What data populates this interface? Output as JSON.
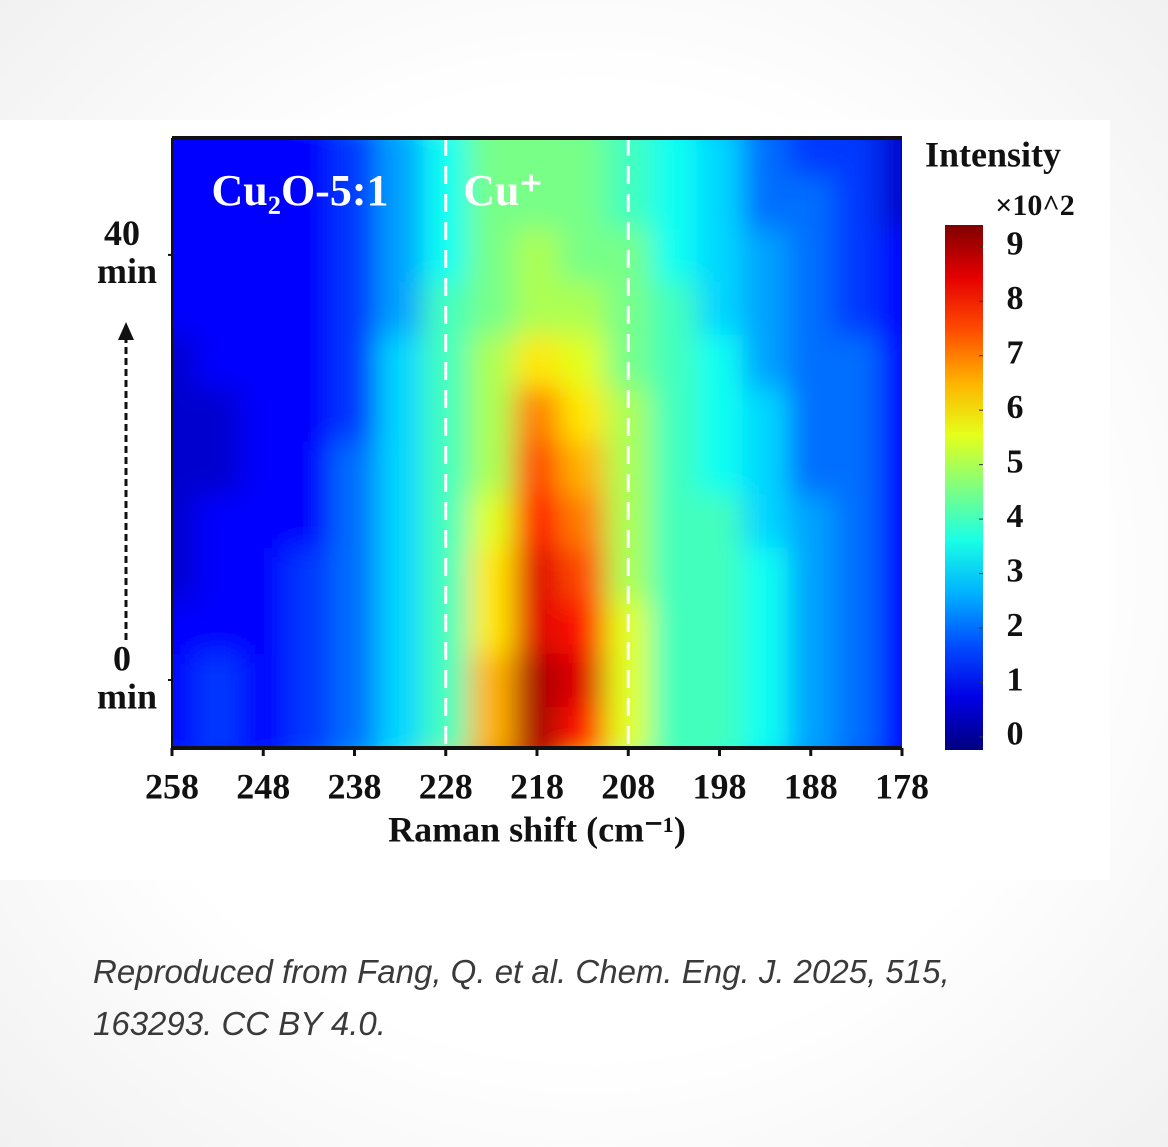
{
  "chart_data": {
    "type": "heatmap",
    "xlabel": "Raman shift (cm⁻¹)",
    "x": [
      258,
      253,
      248,
      243,
      238,
      233,
      228,
      223,
      218,
      213,
      208,
      203,
      198,
      193,
      188,
      183,
      178
    ],
    "y": [
      -5,
      0,
      5,
      10,
      15,
      20,
      25,
      30,
      35,
      40,
      45,
      50
    ],
    "xlim": [
      258,
      178
    ],
    "xticks": [
      258,
      248,
      238,
      228,
      218,
      208,
      198,
      188,
      178
    ],
    "ylim": [
      -6.4,
      51
    ],
    "yticks": [
      0,
      40
    ],
    "y_unit": "min",
    "values": [
      [
        1,
        1.5,
        1,
        1.5,
        2,
        3,
        4,
        6.5,
        9,
        8,
        5.5,
        4,
        4,
        3.5,
        2.5,
        2,
        1
      ],
      [
        1,
        1.5,
        1,
        1.5,
        2,
        3,
        4,
        6.5,
        9,
        8.5,
        5.5,
        4,
        4,
        3.5,
        2.5,
        2,
        1
      ],
      [
        1,
        1,
        1,
        1.5,
        2,
        3,
        4,
        6,
        8.5,
        8,
        5.5,
        4,
        4,
        3.5,
        2.5,
        2,
        1
      ],
      [
        0.5,
        1,
        1,
        1.5,
        2,
        3,
        4,
        6,
        8.5,
        7.5,
        5,
        4,
        4,
        3.5,
        2.5,
        2,
        1
      ],
      [
        0.5,
        1,
        1,
        1,
        2,
        3,
        4,
        5.5,
        8,
        7,
        5,
        4,
        4,
        3,
        2.5,
        2,
        1
      ],
      [
        0.5,
        0.5,
        1,
        1,
        2,
        3,
        4,
        5,
        7.5,
        6.5,
        5,
        4,
        3.5,
        3,
        2,
        2,
        1
      ],
      [
        0.5,
        0.5,
        1,
        1,
        1.5,
        3,
        4,
        5,
        7,
        6,
        5,
        4,
        3.5,
        3,
        2,
        2,
        1
      ],
      [
        0.5,
        1,
        1,
        1,
        1.5,
        3,
        4,
        5,
        6,
        5.5,
        4.5,
        4,
        3.5,
        2.5,
        2,
        2,
        1
      ],
      [
        1,
        1,
        1,
        1,
        1.5,
        2.5,
        4,
        4.5,
        5,
        5,
        4.5,
        4,
        3,
        2.5,
        2,
        1.5,
        1
      ],
      [
        1,
        1,
        1,
        1,
        1.5,
        2.5,
        3.5,
        4.5,
        5,
        4.5,
        4.5,
        3.5,
        3,
        2.5,
        2,
        1.5,
        1
      ],
      [
        1,
        1,
        1,
        1,
        1.5,
        2.5,
        3.5,
        4.5,
        4.5,
        4.5,
        4,
        3.5,
        3,
        2,
        2,
        1.5,
        0.5
      ],
      [
        1,
        1,
        1,
        1,
        1.5,
        2.5,
        3.5,
        4.5,
        4.5,
        4.5,
        4,
        3.5,
        3,
        2,
        1.5,
        1.5,
        0.5
      ]
    ],
    "colormap": "jet",
    "colorbar_title": "Intensity",
    "colorbar_multiplier": "×10^2",
    "zlim": [
      -0.24,
      9.4
    ],
    "zticks": [
      0,
      1,
      2,
      3,
      4,
      5,
      6,
      7,
      8,
      9
    ],
    "dashed_lines": [
      228,
      208
    ],
    "annotations": [
      "Cu₂O-5:1",
      "Cu⁺"
    ]
  },
  "caption": [
    "Reproduced from Fang, Q. et al. Chem. Eng. J. 2025, 515,",
    "163293. CC BY 4.0."
  ]
}
